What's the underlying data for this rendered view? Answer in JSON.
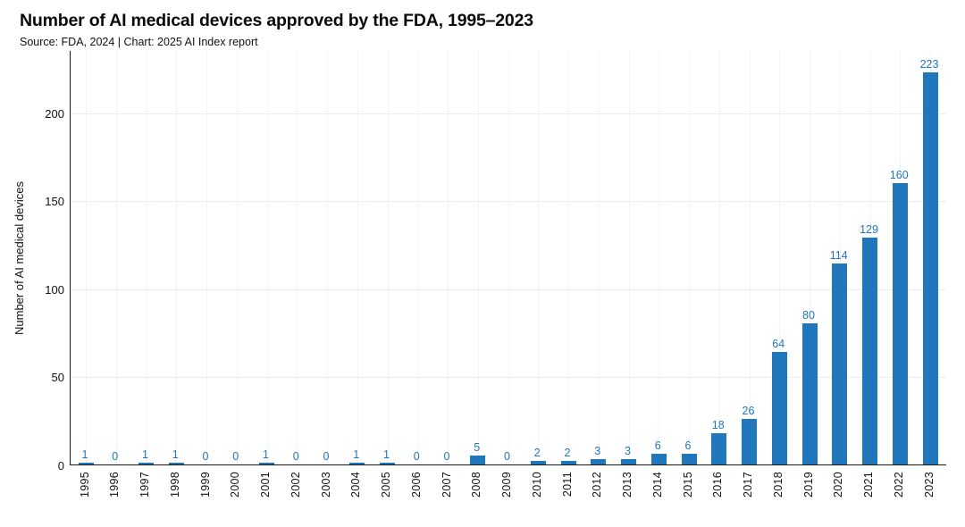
{
  "header": {
    "title": "Number of AI medical devices approved by the FDA, 1995–2023",
    "subtitle": "Source: FDA, 2024 | Chart: 2025 AI Index report"
  },
  "chart_data": {
    "type": "bar",
    "title": "Number of AI medical devices approved by the FDA, 1995–2023",
    "subtitle": "Source: FDA, 2024 | Chart: 2025 AI Index report",
    "categories": [
      "1995",
      "1996",
      "1997",
      "1998",
      "1999",
      "2000",
      "2001",
      "2002",
      "2003",
      "2004",
      "2005",
      "2006",
      "2007",
      "2008",
      "2009",
      "2010",
      "2011",
      "2012",
      "2013",
      "2014",
      "2015",
      "2016",
      "2017",
      "2018",
      "2019",
      "2020",
      "2021",
      "2022",
      "2023"
    ],
    "values": [
      1,
      0,
      1,
      1,
      0,
      0,
      1,
      0,
      0,
      1,
      1,
      0,
      0,
      5,
      0,
      2,
      2,
      3,
      3,
      6,
      6,
      18,
      26,
      64,
      80,
      114,
      129,
      160,
      223
    ],
    "xlabel": "",
    "ylabel": "Number of AI medical devices",
    "ylim": [
      0,
      235
    ],
    "yticks": [
      0,
      50,
      100,
      150,
      200
    ],
    "grid": true,
    "legend_position": "none",
    "bar_color": "#2177bc",
    "value_label_color": "#2176bc"
  }
}
